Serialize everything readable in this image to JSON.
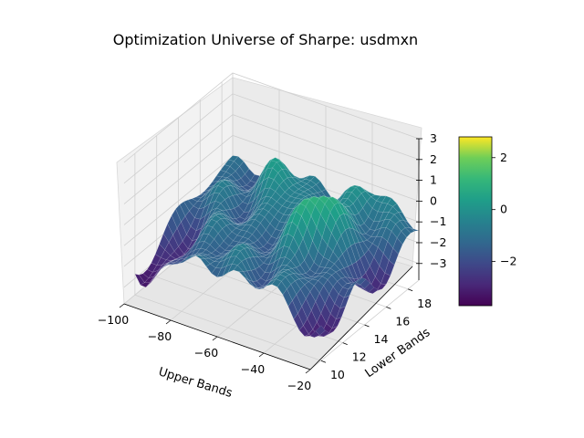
{
  "chart_data": {
    "type": "surface",
    "title": "Optimization Universe of Sharpe: usdmxn",
    "xlabel": "Upper Bands",
    "ylabel": "Lower Bands",
    "zlabel": "",
    "x_ticks": [
      -100,
      -80,
      -60,
      -40,
      -20
    ],
    "y_ticks": [
      10,
      12,
      14,
      16,
      18
    ],
    "z_ticks": [
      -3,
      -2,
      -1,
      0,
      1,
      2,
      3
    ],
    "xlim": [
      -100,
      -20
    ],
    "ylim": [
      9,
      19
    ],
    "zlim": [
      -3.8,
      3
    ],
    "colormap": "viridis",
    "colorbar_ticks": [
      -2,
      0,
      2
    ],
    "colorbar_range": [
      -3.7,
      2.8
    ],
    "grid": true,
    "surface_summary": {
      "min_value": -3.7,
      "max_value": 2.8,
      "peak_near": {
        "x": -45,
        "y": 15,
        "z": 2.8
      }
    }
  }
}
